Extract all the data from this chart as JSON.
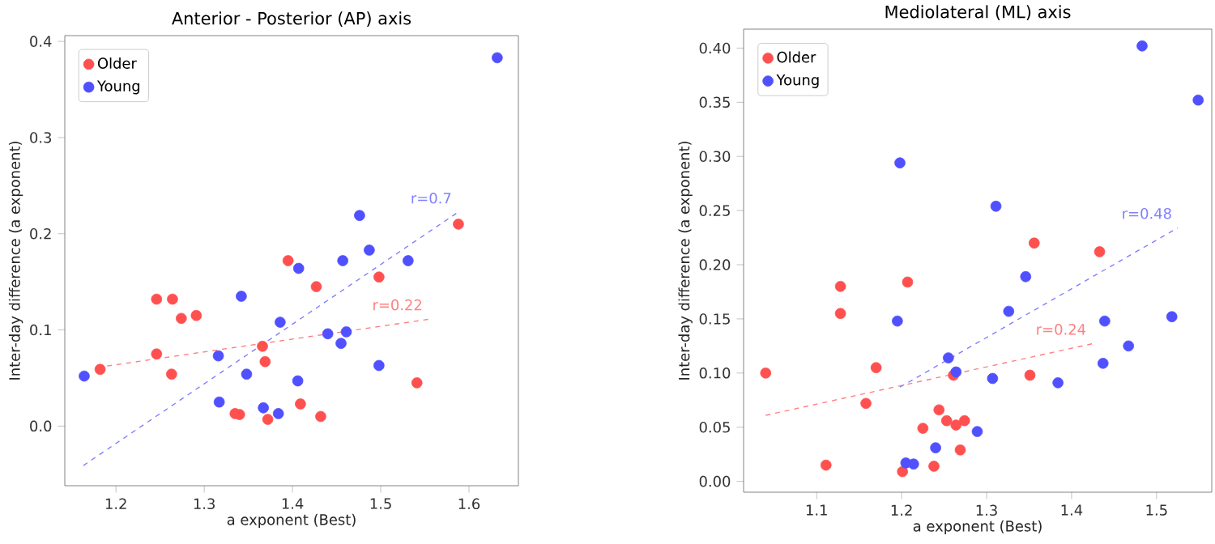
{
  "chart_data": [
    {
      "type": "scatter",
      "title": "Anterior - Posterior (AP) axis",
      "xlabel": "a exponent (Best)",
      "ylabel": "Inter-day difference (a exponent)",
      "xlim": [
        1.142,
        1.656
      ],
      "ylim": [
        -0.062,
        0.406
      ],
      "xticks": [
        1.2,
        1.3,
        1.4,
        1.5,
        1.6
      ],
      "yticks": [
        {
          "value": 0.0,
          "label": "0.0"
        },
        0.1,
        0.2,
        0.3,
        0.4
      ],
      "legend": "top left",
      "marker": "circle",
      "series": [
        {
          "name": "Older",
          "color": "#ff5050",
          "x": [
            1.182,
            1.246,
            1.264,
            1.274,
            1.291,
            1.246,
            1.263,
            1.335,
            1.34,
            1.366,
            1.369,
            1.372,
            1.395,
            1.409,
            1.427,
            1.432,
            1.498,
            1.541,
            1.588
          ],
          "values": [
            0.059,
            0.132,
            0.132,
            0.112,
            0.115,
            0.075,
            0.054,
            0.013,
            0.012,
            0.083,
            0.067,
            0.007,
            0.172,
            0.023,
            0.145,
            0.01,
            0.155,
            0.045,
            0.21
          ]
        },
        {
          "name": "Young",
          "color": "#5050ff",
          "x": [
            1.164,
            1.316,
            1.317,
            1.342,
            1.348,
            1.367,
            1.384,
            1.386,
            1.406,
            1.407,
            1.44,
            1.455,
            1.461,
            1.457,
            1.476,
            1.487,
            1.498,
            1.531,
            1.632
          ],
          "values": [
            0.052,
            0.073,
            0.025,
            0.135,
            0.054,
            0.019,
            0.013,
            0.108,
            0.047,
            0.164,
            0.096,
            0.086,
            0.098,
            0.172,
            0.219,
            0.183,
            0.063,
            0.172,
            0.383
          ]
        },
        {
          "type": "line",
          "color": "#ff8080",
          "line_style": "dashed",
          "marker": "none",
          "x": [
            1.179,
            1.554
          ],
          "values": [
            0.061,
            0.111
          ]
        },
        {
          "type": "line",
          "color": "#8080ff",
          "line_style": "dashed",
          "marker": "none",
          "x": [
            1.163,
            1.587
          ],
          "values": [
            -0.041,
            0.222
          ]
        }
      ],
      "annotations": [
        "r=0.22",
        "r=0.7"
      ]
    },
    {
      "type": "scatter",
      "title": "Mediolateral (ML) axis",
      "xlabel": "a exponent (Best)",
      "ylabel": "Inter-day difference (a exponent)",
      "xlim": [
        1.014,
        1.565
      ],
      "ylim": [
        -0.01,
        0.4175
      ],
      "xticks": [
        1.1,
        1.2,
        1.3,
        1.4,
        1.5
      ],
      "yticks": [
        {
          "value": 0.0,
          "label": "0.00"
        },
        0.05,
        {
          "value": 0.1,
          "label": "0.10"
        },
        0.15,
        {
          "value": 0.2,
          "label": "0.20"
        },
        0.25,
        {
          "value": 0.3,
          "label": "0.30"
        },
        0.35,
        {
          "value": 0.4,
          "label": "0.40"
        }
      ],
      "legend": "top left",
      "marker": "circle",
      "series": [
        {
          "name": "Older",
          "color": "#ff5050",
          "x": [
            1.04,
            1.111,
            1.128,
            1.128,
            1.158,
            1.17,
            1.201,
            1.207,
            1.225,
            1.244,
            1.238,
            1.253,
            1.264,
            1.274,
            1.269,
            1.261,
            1.356,
            1.351,
            1.433
          ],
          "values": [
            0.1,
            0.015,
            0.18,
            0.155,
            0.072,
            0.105,
            0.009,
            0.184,
            0.049,
            0.066,
            0.014,
            0.056,
            0.052,
            0.056,
            0.029,
            0.098,
            0.22,
            0.098,
            0.212
          ]
        },
        {
          "name": "Young",
          "color": "#5050ff",
          "x": [
            1.198,
            1.195,
            1.205,
            1.214,
            1.24,
            1.255,
            1.264,
            1.289,
            1.307,
            1.311,
            1.326,
            1.346,
            1.384,
            1.437,
            1.439,
            1.467,
            1.483,
            1.518,
            1.549
          ],
          "values": [
            0.294,
            0.148,
            0.017,
            0.016,
            0.031,
            0.114,
            0.101,
            0.046,
            0.095,
            0.254,
            0.157,
            0.189,
            0.091,
            0.109,
            0.148,
            0.125,
            0.402,
            0.152,
            0.352
          ]
        },
        {
          "type": "line",
          "color": "#ff8080",
          "line_style": "dashed",
          "marker": "none",
          "x": [
            1.04,
            1.424
          ],
          "values": [
            0.061,
            0.127
          ]
        },
        {
          "type": "line",
          "color": "#8080ff",
          "line_style": "dashed",
          "marker": "none",
          "x": [
            1.198,
            1.525
          ],
          "values": [
            0.087,
            0.234
          ]
        }
      ],
      "annotations": [
        "r=0.24",
        "r=0.48"
      ]
    }
  ]
}
